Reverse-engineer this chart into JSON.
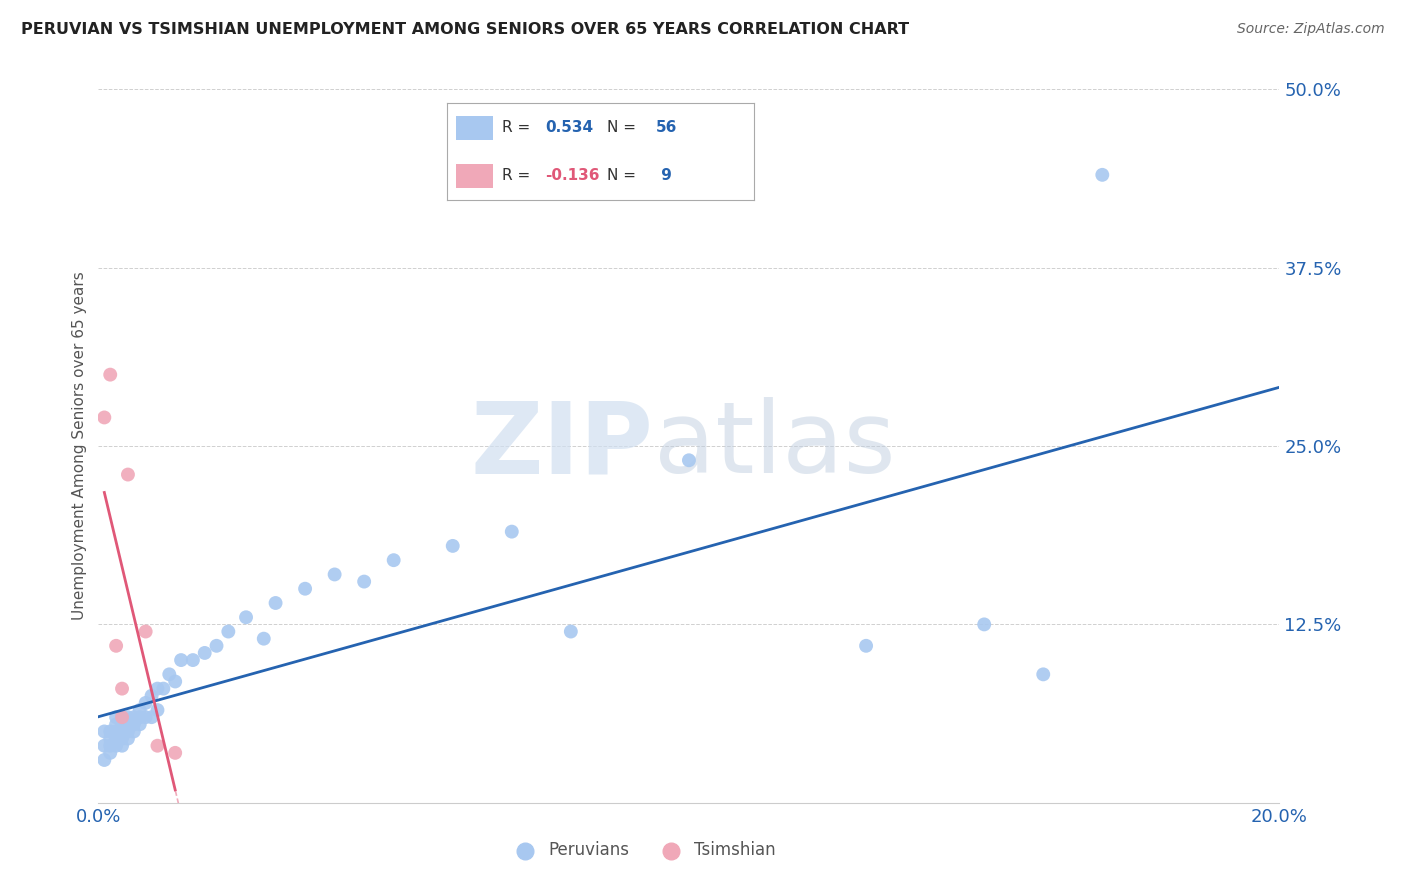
{
  "title": "PERUVIAN VS TSIMSHIAN UNEMPLOYMENT AMONG SENIORS OVER 65 YEARS CORRELATION CHART",
  "source": "Source: ZipAtlas.com",
  "ylabel": "Unemployment Among Seniors over 65 years",
  "xlim": [
    0.0,
    0.2
  ],
  "ylim": [
    0.0,
    0.5
  ],
  "xticks": [
    0.0,
    0.05,
    0.1,
    0.15,
    0.2
  ],
  "xtick_labels": [
    "0.0%",
    "",
    "",
    "",
    "20.0%"
  ],
  "yticks": [
    0.0,
    0.125,
    0.25,
    0.375,
    0.5
  ],
  "ytick_labels": [
    "",
    "12.5%",
    "25.0%",
    "37.5%",
    "50.0%"
  ],
  "peruvian_R": 0.534,
  "peruvian_N": 56,
  "tsimshian_R": -0.136,
  "tsimshian_N": 9,
  "peruvian_color": "#a8c8f0",
  "tsimshian_color": "#f0a8b8",
  "peruvian_line_color": "#2563b0",
  "tsimshian_line_color": "#e05878",
  "peruvian_x": [
    0.001,
    0.001,
    0.001,
    0.002,
    0.002,
    0.002,
    0.002,
    0.003,
    0.003,
    0.003,
    0.003,
    0.003,
    0.004,
    0.004,
    0.004,
    0.004,
    0.004,
    0.005,
    0.005,
    0.005,
    0.005,
    0.006,
    0.006,
    0.006,
    0.007,
    0.007,
    0.007,
    0.008,
    0.008,
    0.009,
    0.009,
    0.01,
    0.01,
    0.011,
    0.012,
    0.013,
    0.014,
    0.016,
    0.018,
    0.02,
    0.022,
    0.025,
    0.028,
    0.03,
    0.035,
    0.04,
    0.045,
    0.05,
    0.06,
    0.07,
    0.08,
    0.1,
    0.13,
    0.15,
    0.16,
    0.17
  ],
  "peruvian_y": [
    0.03,
    0.04,
    0.05,
    0.035,
    0.04,
    0.045,
    0.05,
    0.04,
    0.045,
    0.05,
    0.055,
    0.06,
    0.04,
    0.045,
    0.05,
    0.055,
    0.06,
    0.045,
    0.05,
    0.055,
    0.06,
    0.05,
    0.055,
    0.06,
    0.055,
    0.06,
    0.065,
    0.06,
    0.07,
    0.06,
    0.075,
    0.065,
    0.08,
    0.08,
    0.09,
    0.085,
    0.1,
    0.1,
    0.105,
    0.11,
    0.12,
    0.13,
    0.115,
    0.14,
    0.15,
    0.16,
    0.155,
    0.17,
    0.18,
    0.19,
    0.12,
    0.24,
    0.11,
    0.125,
    0.09,
    0.44
  ],
  "tsimshian_x": [
    0.001,
    0.002,
    0.003,
    0.004,
    0.004,
    0.005,
    0.008,
    0.01,
    0.013
  ],
  "tsimshian_y": [
    0.27,
    0.3,
    0.11,
    0.08,
    0.06,
    0.23,
    0.12,
    0.04,
    0.035
  ],
  "watermark_zip": "ZIP",
  "watermark_atlas": "atlas",
  "background_color": "#ffffff",
  "grid_color": "#d0d0d0",
  "legend_peruvian_label": "Peruvians",
  "legend_tsimshian_label": "Tsimshian"
}
